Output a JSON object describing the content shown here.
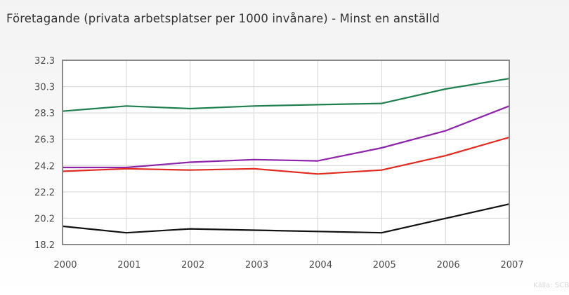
{
  "chart_data": {
    "type": "line",
    "title": "Företagande (privata arbetsplatser per 1000 invånare) - Minst en anställd",
    "x": [
      "2000",
      "2001",
      "2002",
      "2003",
      "2004",
      "2005",
      "2006",
      "2007"
    ],
    "y_ticks": [
      "32.3",
      "30.3",
      "28.3",
      "26.3",
      "24.2",
      "22.2",
      "20.2",
      "18.2"
    ],
    "ylim": [
      18.2,
      32.3
    ],
    "grid": true,
    "legend": "none",
    "series": [
      {
        "color": "#1f7f4f",
        "values": [
          28.4,
          28.8,
          28.6,
          28.8,
          28.9,
          29.0,
          30.1,
          30.9
        ]
      },
      {
        "color": "#8e24aa",
        "values": [
          24.1,
          24.1,
          24.5,
          24.7,
          24.6,
          25.6,
          26.9,
          28.8
        ]
      },
      {
        "color": "#e02b20",
        "values": [
          23.8,
          24.0,
          23.9,
          24.0,
          23.6,
          23.9,
          25.0,
          26.4
        ]
      },
      {
        "color": "#111111",
        "values": [
          19.6,
          19.1,
          19.4,
          19.3,
          19.2,
          19.1,
          20.2,
          21.3
        ]
      }
    ]
  },
  "source": "Källa: SCB"
}
